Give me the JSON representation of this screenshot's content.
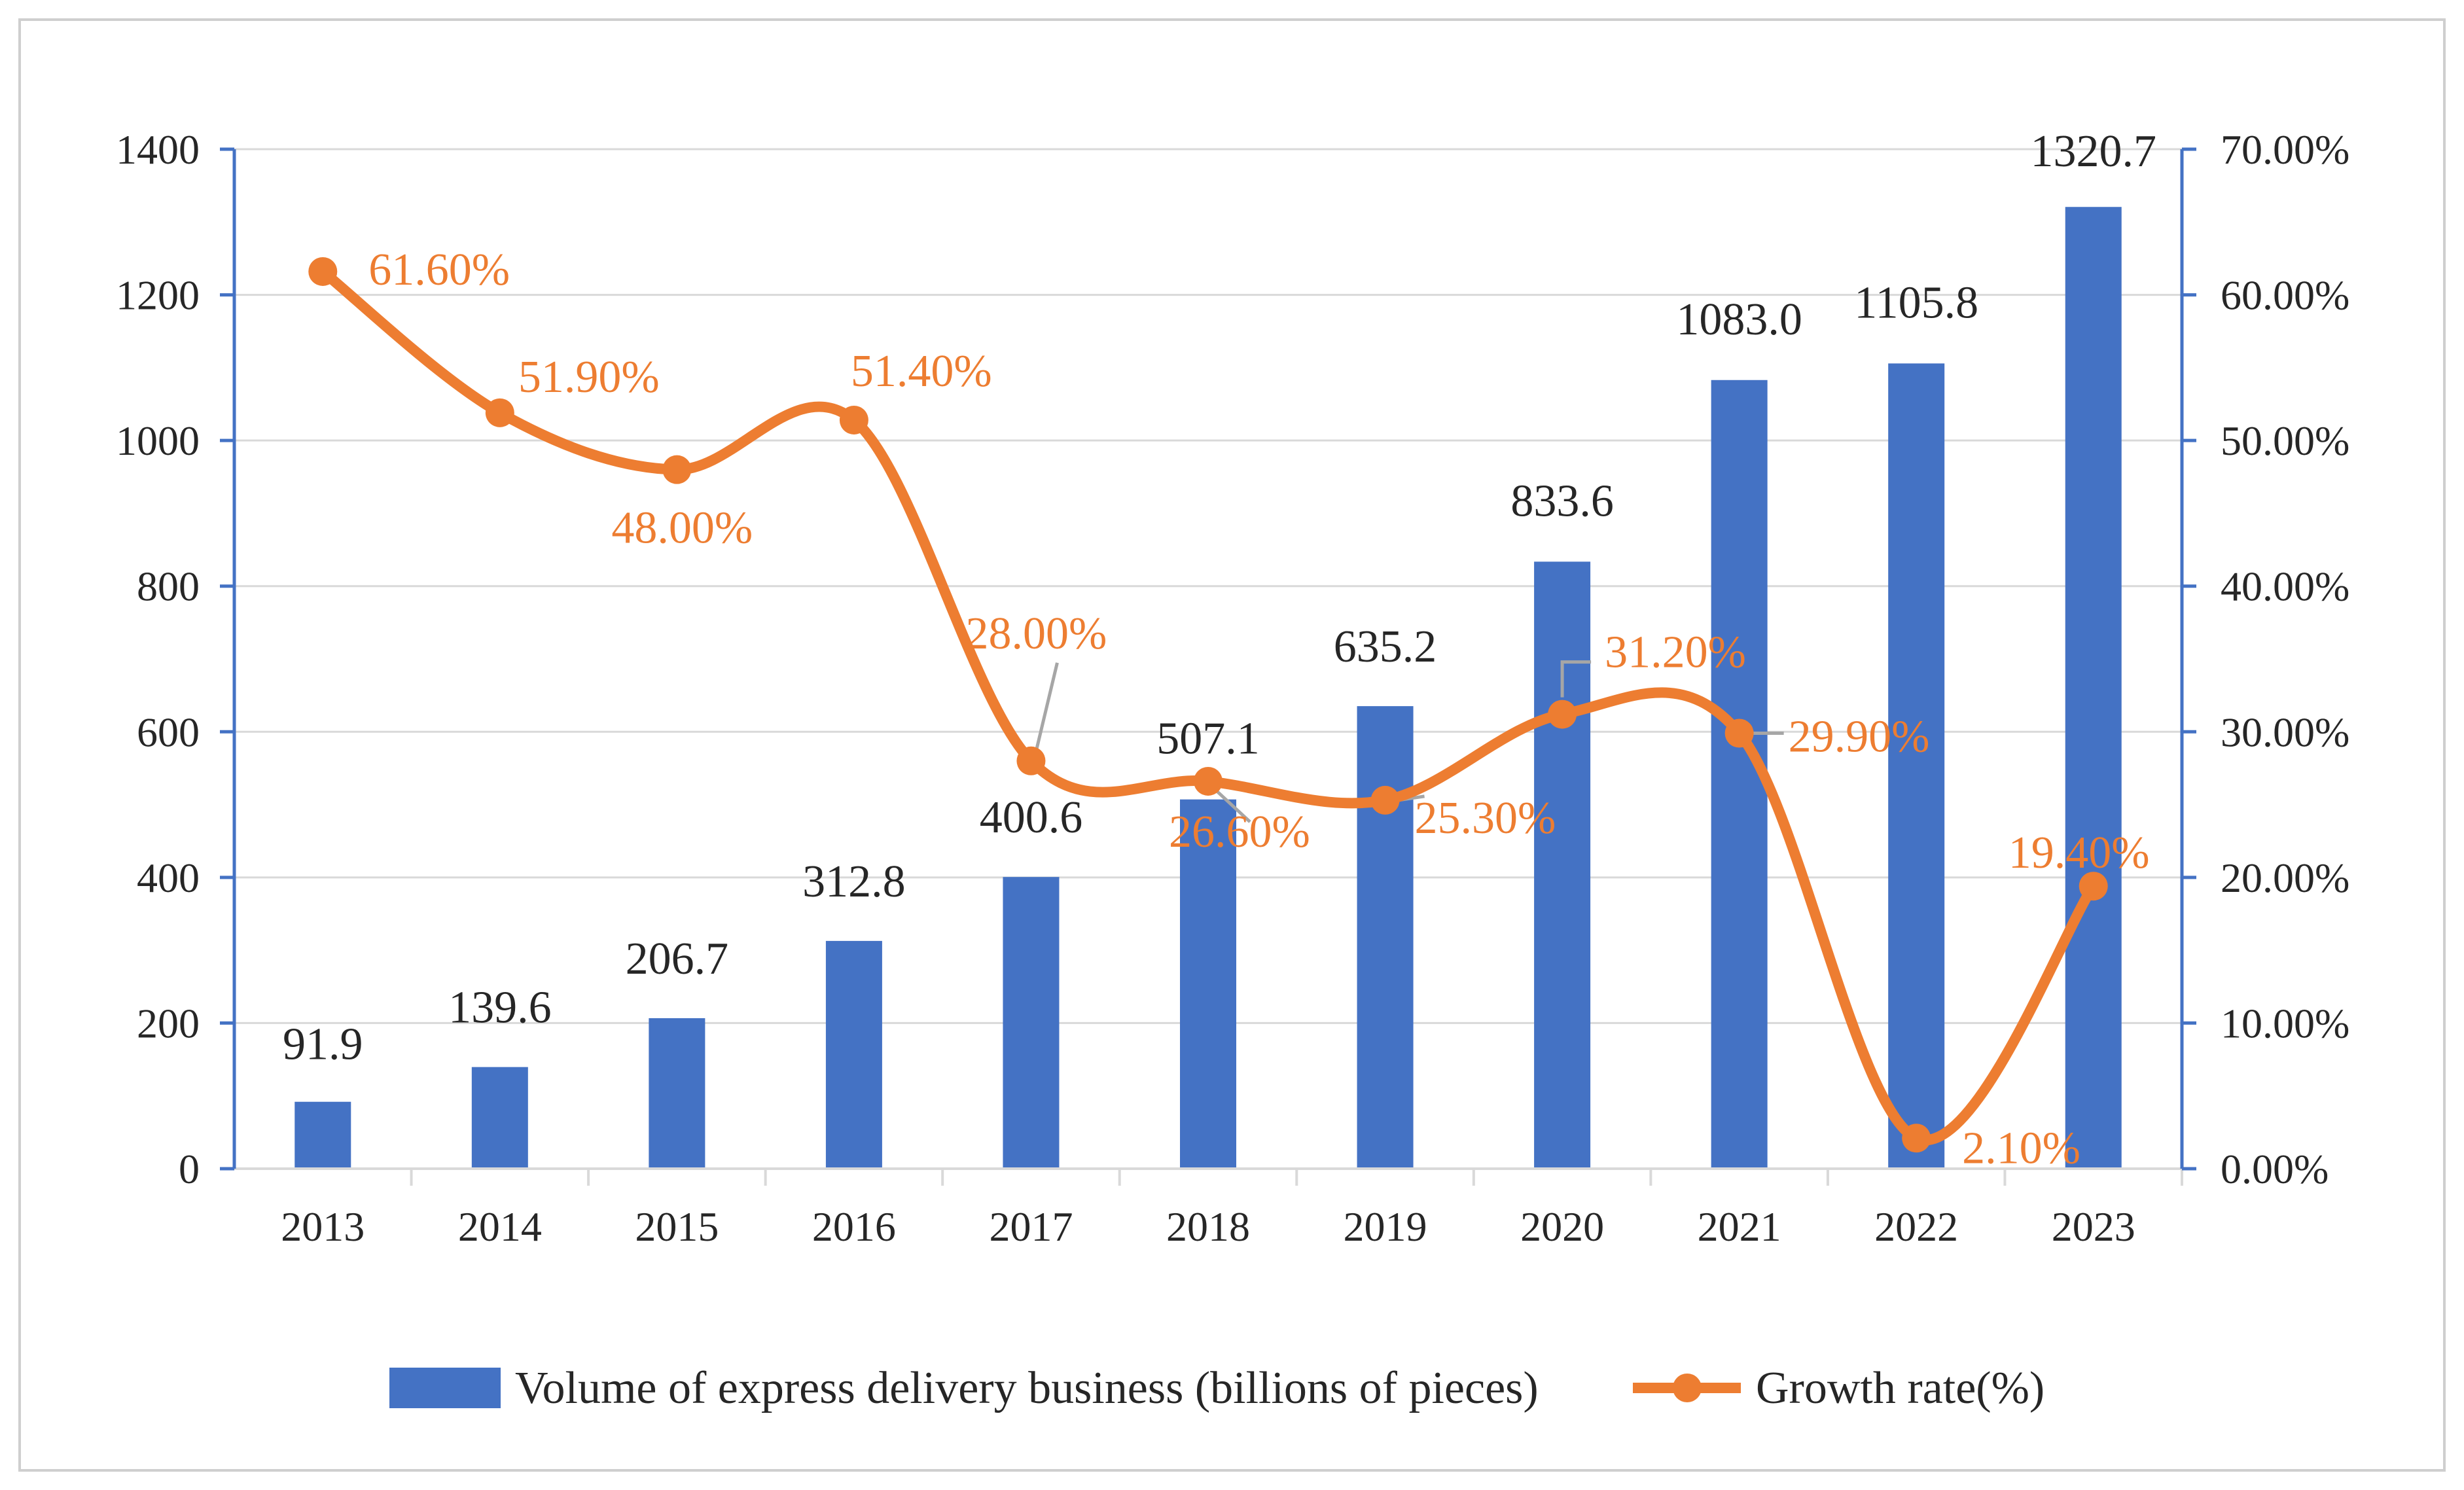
{
  "chart_data": {
    "type": "bar+line",
    "categories": [
      "2013",
      "2014",
      "2015",
      "2016",
      "2017",
      "2018",
      "2019",
      "2020",
      "2021",
      "2022",
      "2023"
    ],
    "series": [
      {
        "name": "Volume of express delivery business (billions of pieces)",
        "type": "bar",
        "axis": "left",
        "values": [
          91.9,
          139.6,
          206.7,
          312.8,
          400.6,
          507.1,
          635.2,
          833.6,
          1083.0,
          1105.8,
          1320.7
        ],
        "labels": [
          "91.9",
          "139.6",
          "206.7",
          "312.8",
          "400.6",
          "507.1",
          "635.2",
          "833.6",
          "1083.0",
          "1105.8",
          "1320.7"
        ],
        "color": "#4472c4"
      },
      {
        "name": "Growth rate(%)",
        "type": "line",
        "axis": "right",
        "values": [
          61.6,
          51.9,
          48.0,
          51.4,
          28.0,
          26.6,
          25.3,
          31.2,
          29.9,
          2.1,
          19.4
        ],
        "labels": [
          "61.60%",
          "51.90%",
          "48.00%",
          "51.40%",
          "28.00%",
          "26.60%",
          "25.30%",
          "31.20%",
          "29.90%",
          "2.10%",
          "19.40%"
        ],
        "color": "#ed7d31"
      }
    ],
    "left_axis": {
      "range": [
        0,
        1400
      ],
      "ticks": [
        "0",
        "200",
        "400",
        "600",
        "800",
        "1000",
        "1200",
        "1400"
      ]
    },
    "right_axis": {
      "range": [
        0,
        70
      ],
      "ticks": [
        "0.00%",
        "10.00%",
        "20.00%",
        "30.00%",
        "40.00%",
        "50.00%",
        "60.00%",
        "70.00%"
      ]
    },
    "title": "",
    "xlabel": "",
    "ylabel": "",
    "grid": true,
    "legend": "bottom",
    "colors": {
      "axis": "#4472c4",
      "grid": "#d9d9d9",
      "text": "#262626",
      "leader": "#a6a6a6"
    }
  }
}
